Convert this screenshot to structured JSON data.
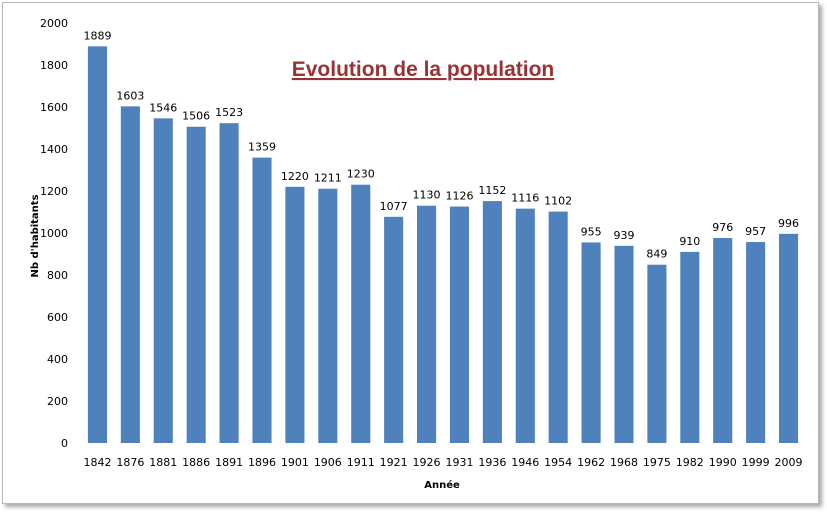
{
  "chart_data": {
    "type": "bar",
    "title": "Evolution de la population",
    "xlabel": "Année",
    "ylabel": "Nb d'habitants",
    "ylim": [
      0,
      2000
    ],
    "yticks": [
      0,
      200,
      400,
      600,
      800,
      1000,
      1200,
      1400,
      1600,
      1800,
      2000
    ],
    "grid": false,
    "legend": "none",
    "bar_color": "#4f81bd",
    "title_color": "#993333",
    "categories": [
      "1842",
      "1876",
      "1881",
      "1886",
      "1891",
      "1896",
      "1901",
      "1906",
      "1911",
      "1921",
      "1926",
      "1931",
      "1936",
      "1946",
      "1954",
      "1962",
      "1968",
      "1975",
      "1982",
      "1990",
      "1999",
      "2009"
    ],
    "values": [
      1889,
      1603,
      1546,
      1506,
      1523,
      1359,
      1220,
      1211,
      1230,
      1077,
      1130,
      1126,
      1152,
      1116,
      1102,
      955,
      939,
      849,
      910,
      976,
      957,
      996
    ]
  }
}
